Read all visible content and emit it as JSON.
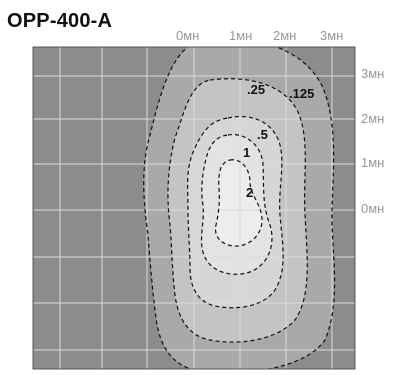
{
  "title": "OPP-400-A",
  "top_axis": [
    "0мн",
    "1мн",
    "2мн",
    "3мн"
  ],
  "right_axis": [
    "3мн",
    "2мн",
    "1мн",
    "0мн"
  ],
  "contour_labels": [
    ".25",
    ".125",
    ".5",
    "1",
    "2"
  ],
  "colors": {
    "background": "#8c8c8c",
    "grid": "#dcdcdc",
    "level_0125": "#a9a9a9",
    "level_025": "#c4c4c4",
    "level_05": "#d6d6d6",
    "level_1": "#e3e3e3",
    "level_2": "#ededed",
    "contour": "#111111",
    "axis_text": "#999999"
  }
}
